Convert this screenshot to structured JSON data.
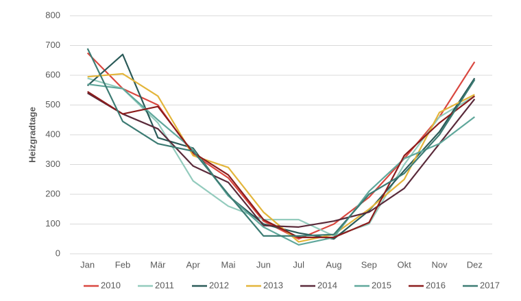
{
  "chart_data": {
    "type": "line",
    "y_label": "Heizgradtage",
    "categories": [
      "Jan",
      "Feb",
      "Mär",
      "Apr",
      "Mai",
      "Jun",
      "Jul",
      "Aug",
      "Sep",
      "Okt",
      "Nov",
      "Dez"
    ],
    "ylim": [
      0,
      800
    ],
    "yticks": [
      0,
      100,
      200,
      300,
      400,
      500,
      600,
      700,
      800
    ],
    "grid": true,
    "legend": "bottom",
    "series": [
      {
        "name": "2010",
        "color": "#d9473f",
        "values": [
          675,
          555,
          500,
          335,
          255,
          110,
          50,
          100,
          190,
          320,
          460,
          645
        ]
      },
      {
        "name": "2011",
        "color": "#93cbbd",
        "values": [
          590,
          555,
          440,
          245,
          160,
          115,
          115,
          60,
          100,
          300,
          460,
          530
        ]
      },
      {
        "name": "2012",
        "color": "#2a5a58",
        "values": [
          565,
          670,
          390,
          355,
          195,
          100,
          70,
          50,
          145,
          280,
          410,
          590
        ]
      },
      {
        "name": "2013",
        "color": "#e3b53a",
        "values": [
          595,
          605,
          530,
          330,
          290,
          140,
          40,
          65,
          150,
          250,
          475,
          535
        ]
      },
      {
        "name": "2014",
        "color": "#5a2a3a",
        "values": [
          540,
          470,
          420,
          295,
          240,
          95,
          90,
          110,
          140,
          220,
          370,
          520
        ]
      },
      {
        "name": "2015",
        "color": "#5fa79b",
        "values": [
          570,
          555,
          450,
          350,
          195,
          90,
          30,
          55,
          210,
          320,
          370,
          460
        ]
      },
      {
        "name": "2016",
        "color": "#8b1c1c",
        "values": [
          545,
          470,
          495,
          340,
          265,
          115,
          55,
          55,
          105,
          330,
          440,
          530
        ]
      },
      {
        "name": "2017",
        "color": "#3c7b73",
        "values": [
          690,
          445,
          370,
          345,
          200,
          60,
          60,
          65,
          200,
          270,
          400,
          585
        ]
      }
    ]
  }
}
